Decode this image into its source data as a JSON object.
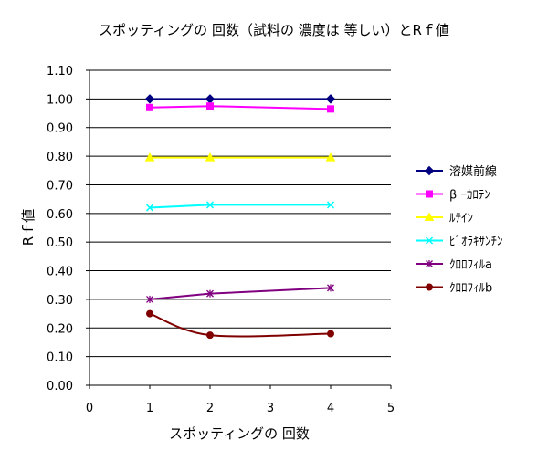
{
  "chart_data": {
    "type": "line",
    "title": "スポッティングの 回数（試料の 濃度は 等しい）とRｆ値",
    "xlabel": "スポッティングの 回数",
    "ylabel": "Rｆ値",
    "xlim": [
      0,
      5
    ],
    "ylim": [
      0,
      1.1
    ],
    "xticks": [
      "0",
      "1",
      "2",
      "3",
      "4",
      "5"
    ],
    "yticks": [
      "0.00",
      "0.10",
      "0.20",
      "0.30",
      "0.40",
      "0.50",
      "0.60",
      "0.70",
      "0.80",
      "0.90",
      "1.00",
      "1.10"
    ],
    "grid": true,
    "legend_position": "right",
    "x": [
      1,
      2,
      4
    ],
    "series": [
      {
        "name": "溶媒前線",
        "values": [
          1.0,
          1.0,
          1.0
        ],
        "color": "#000080",
        "marker": "diamond"
      },
      {
        "name": "β ｰｶﾛﾃﾝ",
        "values": [
          0.97,
          0.975,
          0.965
        ],
        "color": "#FF00FF",
        "marker": "square"
      },
      {
        "name": "ﾙﾃｲﾝ",
        "values": [
          0.795,
          0.795,
          0.795
        ],
        "color": "#FFFF00",
        "marker": "triangle"
      },
      {
        "name": "ﾋﾞｵﾗｷｻﾝﾁﾝ",
        "values": [
          0.62,
          0.63,
          0.63
        ],
        "color": "#00FFFF",
        "marker": "x"
      },
      {
        "name": "ｸﾛﾛﾌｨﾙa",
        "values": [
          0.3,
          0.32,
          0.34
        ],
        "color": "#800080",
        "marker": "star"
      },
      {
        "name": "ｸﾛﾛﾌｨﾙb",
        "values": [
          0.25,
          0.175,
          0.18
        ],
        "color": "#800000",
        "marker": "circle",
        "smooth": true
      }
    ]
  }
}
